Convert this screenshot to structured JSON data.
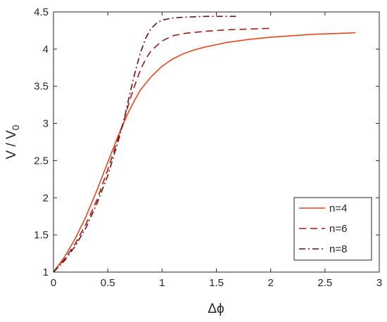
{
  "chart_data": {
    "type": "line",
    "title": "",
    "xlabel": "Δϕ",
    "ylabel_main": "V / V",
    "ylabel_sub": "0",
    "xlim": [
      0,
      3
    ],
    "ylim": [
      1,
      4.5
    ],
    "xticks": [
      "0",
      "0.5",
      "1",
      "1.5",
      "2",
      "2.5",
      "3"
    ],
    "yticks": [
      "1",
      "1.5",
      "2",
      "2.5",
      "3",
      "3.5",
      "4",
      "4.5"
    ],
    "grid": false,
    "legend_position": "bottom-right",
    "series": [
      {
        "name": "n=4",
        "color": "#e8471c",
        "dash": "solid",
        "x": [
          0,
          0.1,
          0.2,
          0.3,
          0.4,
          0.5,
          0.6,
          0.65,
          0.7,
          0.75,
          0.8,
          0.9,
          1.0,
          1.1,
          1.2,
          1.3,
          1.4,
          1.5,
          1.6,
          1.8,
          2.0,
          2.2,
          2.4,
          2.6,
          2.78
        ],
        "y": [
          1.0,
          1.2,
          1.45,
          1.75,
          2.1,
          2.48,
          2.85,
          3.02,
          3.18,
          3.32,
          3.45,
          3.63,
          3.77,
          3.87,
          3.94,
          3.99,
          4.03,
          4.06,
          4.09,
          4.13,
          4.16,
          4.18,
          4.2,
          4.21,
          4.22
        ]
      },
      {
        "name": "n=6",
        "color": "#a11a1a",
        "dash": "dashed",
        "x": [
          0,
          0.1,
          0.2,
          0.3,
          0.4,
          0.5,
          0.6,
          0.65,
          0.7,
          0.75,
          0.8,
          0.85,
          0.9,
          1.0,
          1.1,
          1.2,
          1.4,
          1.6,
          1.8,
          2.0
        ],
        "y": [
          1.0,
          1.17,
          1.38,
          1.65,
          1.97,
          2.38,
          2.82,
          3.05,
          3.3,
          3.52,
          3.72,
          3.87,
          3.98,
          4.11,
          4.18,
          4.21,
          4.24,
          4.26,
          4.27,
          4.28
        ]
      },
      {
        "name": "n=8",
        "color": "#6b0f1a",
        "dash": "dashdot",
        "x": [
          0,
          0.1,
          0.2,
          0.3,
          0.4,
          0.5,
          0.6,
          0.65,
          0.7,
          0.75,
          0.8,
          0.85,
          0.9,
          0.95,
          1.0,
          1.1,
          1.2,
          1.3,
          1.4,
          1.5,
          1.68
        ],
        "y": [
          1.0,
          1.15,
          1.35,
          1.6,
          1.92,
          2.3,
          2.78,
          3.05,
          3.38,
          3.68,
          3.95,
          4.15,
          4.28,
          4.35,
          4.39,
          4.42,
          4.43,
          4.435,
          4.44,
          4.44,
          4.44
        ]
      }
    ]
  }
}
